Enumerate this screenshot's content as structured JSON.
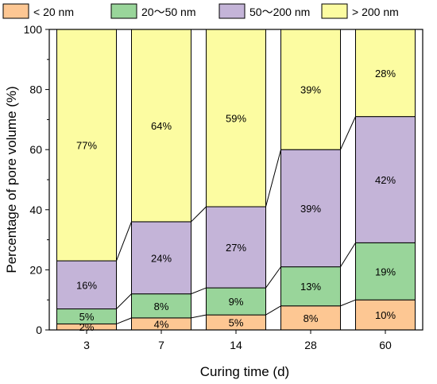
{
  "chart_data": {
    "type": "bar",
    "stacked": true,
    "xlabel": "Curing time (d)",
    "ylabel": "Percentage of pore volume (%)",
    "ylim": [
      0,
      100
    ],
    "yticks": [
      0,
      20,
      40,
      60,
      80,
      100
    ],
    "categories": [
      "3",
      "7",
      "14",
      "28",
      "60"
    ],
    "series": [
      {
        "name": "< 20 nm",
        "color": "#fdc793",
        "values": [
          2,
          4,
          5,
          8,
          10
        ],
        "labels": [
          "2%",
          "4%",
          "5%",
          "8%",
          "10%"
        ]
      },
      {
        "name": "20～50 nm",
        "color": "#99d59a",
        "values": [
          5,
          8,
          9,
          13,
          19
        ],
        "labels": [
          "5%",
          "8%",
          "9%",
          "13%",
          "19%"
        ]
      },
      {
        "name": "50～200 nm",
        "color": "#c4b4d8",
        "values": [
          16,
          24,
          27,
          39,
          42
        ],
        "labels": [
          "16%",
          "24%",
          "27%",
          "39%",
          "42%"
        ]
      },
      {
        "name": "> 200 nm",
        "color": "#fcfca1",
        "values": [
          77,
          64,
          59,
          39,
          28
        ],
        "labels": [
          "77%",
          "64%",
          "59%",
          "39%",
          "28%"
        ]
      }
    ],
    "legend": "top",
    "grid": false
  }
}
